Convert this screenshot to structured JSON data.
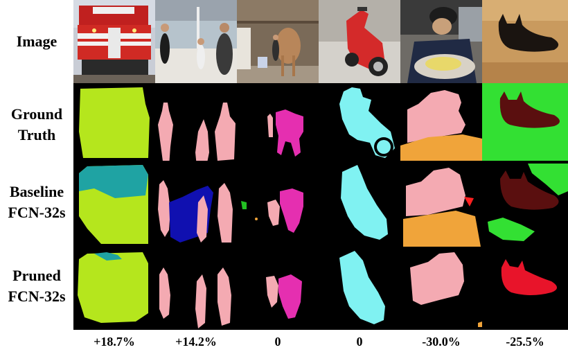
{
  "row_labels": [
    {
      "lines": [
        "Image"
      ]
    },
    {
      "lines": [
        "Ground",
        "Truth"
      ]
    },
    {
      "lines": [
        "Baseline",
        "FCN-32s"
      ]
    },
    {
      "lines": [
        "Pruned",
        "FCN-32s"
      ]
    }
  ],
  "deltas": [
    "+18.7%",
    "+14.2%",
    "0",
    "0",
    "-30.0%",
    "-25.5%"
  ],
  "photos": [
    "train-photo",
    "boat-people-photo",
    "horse-barn-photo",
    "scooter-photo",
    "boy-eating-photo",
    "cat-photo"
  ],
  "class_colors": {
    "train": "#b5e61d",
    "train_alt": "#1fa3a3",
    "person": "#f4aab2",
    "boat_wrong": "#1010b0",
    "horse": "#e52fb0",
    "motorbike": "#80f2f2",
    "table": "#f0a43a",
    "cat": "#5a0f0f",
    "cat_pruned": "#e8142a",
    "background_grass": "#33e033",
    "plant": "#22c022",
    "red_blob": "#ff2020"
  }
}
